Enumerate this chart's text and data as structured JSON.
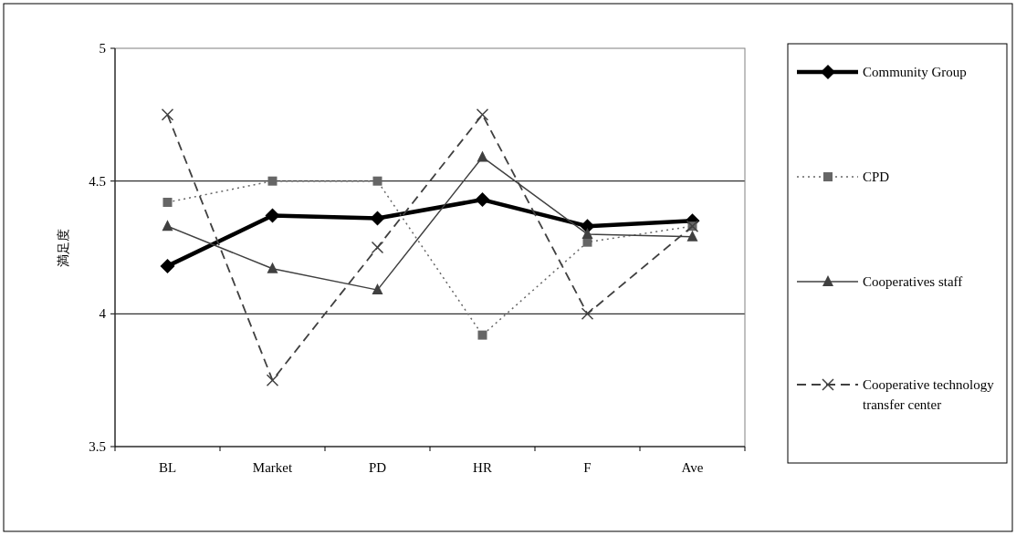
{
  "chart_data": {
    "type": "line",
    "ylabel": "満足度",
    "categories": [
      "BL",
      "Market",
      "PD",
      "HR",
      "F",
      "Ave"
    ],
    "series": [
      {
        "name": "Community Group",
        "color": "#000000",
        "marker": "diamond",
        "line_style": "solid",
        "values": [
          4.18,
          4.37,
          4.36,
          4.43,
          4.33,
          4.35
        ]
      },
      {
        "name": "CPD",
        "color": "#666666",
        "marker": "square",
        "line_style": "dotted",
        "values": [
          4.42,
          4.5,
          4.5,
          3.92,
          4.27,
          4.33
        ]
      },
      {
        "name": "Cooperatives staff",
        "color": "#404040",
        "marker": "triangle",
        "line_style": "solid",
        "values": [
          4.33,
          4.17,
          4.09,
          4.59,
          4.3,
          4.29
        ]
      },
      {
        "name": "Cooperative technology transfer center",
        "color": "#404040",
        "marker": "cross",
        "line_style": "dashed",
        "values": [
          4.75,
          3.75,
          4.25,
          4.75,
          4.0,
          4.33
        ]
      }
    ],
    "ylim": [
      3.5,
      5
    ],
    "yticks": [
      3.5,
      4,
      4.5,
      5
    ],
    "grid": "y",
    "legend": "right"
  }
}
